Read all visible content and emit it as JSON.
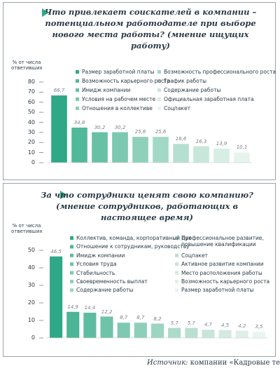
{
  "chart_data": [
    {
      "type": "bar",
      "title": "Что привлекает соискателей в компании – потенциальном работодателе при выборе нового места работы? (мнение ищущих работу)",
      "y_label": "% от числа ответивших",
      "categories": [
        "Размер заработной платы",
        "Возможность карьерного роста",
        "Имидж компании",
        "Условия на рабочем месте",
        "Отношения в коллективе",
        "Возможность профессионального роста",
        "График работы",
        "Содержание работы",
        "Официальная заработная плата",
        "Соцпакет"
      ],
      "values": [
        66.7,
        34.8,
        30.2,
        30.2,
        25.6,
        25.6,
        18.6,
        16.3,
        13.9,
        10.1
      ],
      "value_labels": [
        "66,7",
        "34,8",
        "30,2",
        "30,2",
        "25,6",
        "25,6",
        "18,6",
        "16,3",
        "13,9",
        "10,1"
      ],
      "colors": [
        "#2ea886",
        "#52b89a",
        "#68c0a5",
        "#7cc8b0",
        "#8fd0bb",
        "#a2d8c6",
        "#b5e0d1",
        "#c6e7da",
        "#d6eee4",
        "#e6f4ee"
      ],
      "ylim": [
        0,
        80
      ],
      "yticks": [
        0,
        10,
        20,
        30,
        40,
        50,
        60,
        70,
        80
      ]
    },
    {
      "type": "bar",
      "title": "За что сотрудники ценят свою компанию? (мнение сотрудников, работающих в настоящее время)",
      "y_label": "% от числа ответивших",
      "categories": [
        "Коллектив, команда, корпоративный дух",
        "Отношение к сотрудникам, руководству",
        "Имидж компании",
        "Условия труда",
        "Стабильность",
        "Своевременность выплат",
        "Содержание работы",
        "Профессиональное развитие, повышение квалификации",
        "Соцпакет",
        "Активное развитие компании",
        "Место расположения работы",
        "Возможность карьерного роста",
        "Размер заработной платы"
      ],
      "values": [
        46.5,
        14.9,
        14.4,
        12.2,
        8.7,
        8.7,
        8.2,
        5.7,
        5.7,
        4.7,
        4.5,
        4.2,
        3.5
      ],
      "value_labels": [
        "46,5",
        "14,9",
        "14,4",
        "12,2",
        "8,7",
        "8,7",
        "8,2",
        "5,7",
        "5,7",
        "4,7",
        "4,5",
        "4,2",
        "3,5"
      ],
      "colors": [
        "#2ea886",
        "#4bb596",
        "#5dbca0",
        "#6ec3a9",
        "#7ec9b1",
        "#8ecfba",
        "#9dd5c2",
        "#acdbca",
        "#badfd1",
        "#c7e5d9",
        "#d3eae1",
        "#dfefe8",
        "#eaf5f0"
      ],
      "ylim": [
        0,
        50
      ],
      "yticks": [
        0,
        10,
        20,
        30,
        40,
        50
      ]
    }
  ],
  "source": {
    "label": "Источник:",
    "text": "компании «Кадровые технологии»"
  }
}
